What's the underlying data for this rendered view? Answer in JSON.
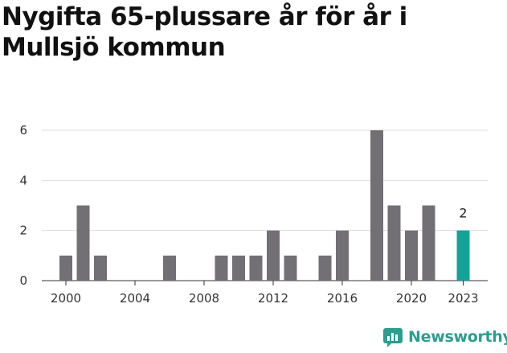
{
  "chart_data": {
    "type": "bar",
    "title": "Nygifta 65-plussare år för år i Mullsjö kommun",
    "xlabel": "",
    "ylabel": "",
    "ylim": [
      0,
      6
    ],
    "yticks": [
      0,
      2,
      4,
      6
    ],
    "xticks": [
      2000,
      2004,
      2008,
      2012,
      2016,
      2020,
      2023
    ],
    "categories": [
      2000,
      2001,
      2002,
      2003,
      2004,
      2005,
      2006,
      2007,
      2008,
      2009,
      2010,
      2011,
      2012,
      2013,
      2014,
      2015,
      2016,
      2017,
      2018,
      2019,
      2020,
      2021,
      2022,
      2023
    ],
    "values": [
      1,
      3,
      1,
      0,
      0,
      0,
      1,
      0,
      0,
      1,
      1,
      1,
      2,
      1,
      0,
      1,
      2,
      0,
      6,
      3,
      2,
      3,
      0,
      2
    ],
    "highlight": {
      "category": 2023,
      "label": "2"
    },
    "colors": {
      "bar": "#727075",
      "highlight": "#13a396",
      "grid": "#dddddd"
    }
  },
  "brand": {
    "name": "Newsworthy",
    "icon": "newsworthy-logo-icon"
  }
}
